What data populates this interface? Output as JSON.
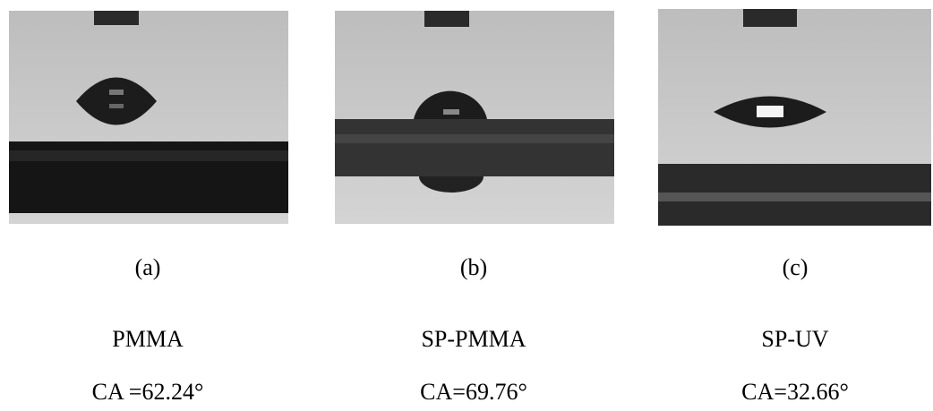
{
  "panels": [
    {
      "label": "(a)",
      "material": "PMMA",
      "contact_angle": "CA =62.24°"
    },
    {
      "label": "(b)",
      "material": "SP-PMMA",
      "contact_angle": "CA=69.76°"
    },
    {
      "label": "(c)",
      "material": "SP-UV",
      "contact_angle": "CA=32.66°"
    }
  ]
}
